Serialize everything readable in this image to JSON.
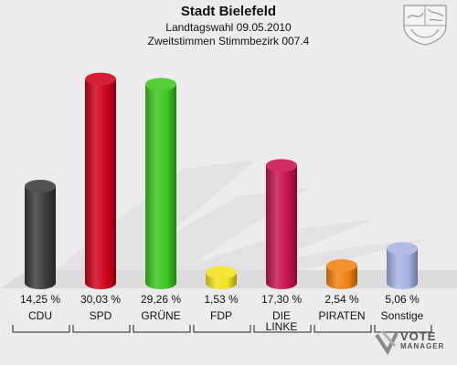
{
  "header": {
    "title": "Stadt Bielefeld",
    "subtitle1": "Landtagswahl 09.05.2010",
    "subtitle2": "Zweitstimmen Stimmbezirk 007.4"
  },
  "branding": {
    "crest_icon": "nrw-coat-of-arms-icon",
    "logo_line1": "VOTE",
    "logo_line2": "MANAGER"
  },
  "chart_data": {
    "type": "bar",
    "title": "Stadt Bielefeld",
    "categories": [
      "CDU",
      "SPD",
      "GRÜNE",
      "FDP",
      "DIE LINKE",
      "PIRATEN",
      "Sonstige"
    ],
    "values": [
      14.25,
      30.03,
      29.26,
      1.53,
      17.3,
      2.54,
      5.06
    ],
    "value_labels": [
      "14,25 %",
      "30,03 %",
      "29,26 %",
      "1,53 %",
      "17,30 %",
      "2,54 %",
      "5,06 %"
    ],
    "colors": [
      "#3a3a3a",
      "#d0001a",
      "#3cc71a",
      "#f2e21c",
      "#c8124e",
      "#f08210",
      "#a3b3e3"
    ],
    "ylim": [
      0,
      32
    ],
    "grid": false,
    "legend": "none"
  }
}
